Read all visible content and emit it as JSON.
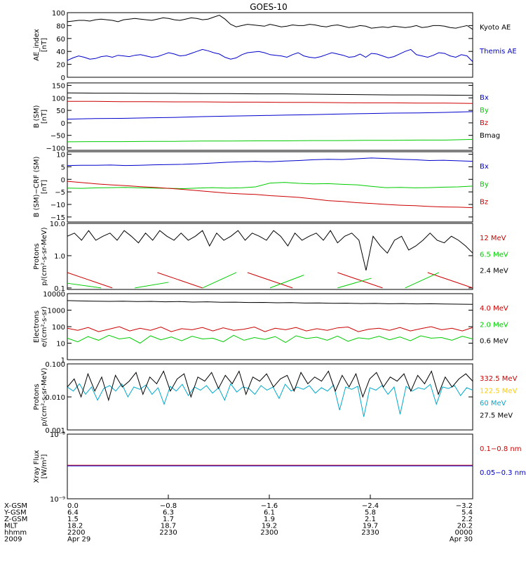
{
  "title": "GOES-10",
  "chart_data": [
    {
      "type": "line",
      "ylabel": [
        "AE_index",
        "[nT]"
      ],
      "ylim": [
        0,
        100
      ],
      "yscale": "linear",
      "ytick_labels": [
        "100",
        "80",
        "60",
        "40",
        "20",
        "0"
      ],
      "ytick_values": [
        100,
        80,
        60,
        40,
        20,
        0
      ],
      "series": [
        {
          "name": "Kyoto AE",
          "color": "#000000",
          "values": [
            86,
            87,
            88,
            88,
            87,
            89,
            90,
            89,
            88,
            86,
            89,
            90,
            91,
            90,
            89,
            88,
            90,
            92,
            91,
            89,
            88,
            90,
            92,
            91,
            89,
            90,
            93,
            96,
            90,
            82,
            78,
            80,
            82,
            81,
            80,
            79,
            82,
            80,
            78,
            79,
            81,
            80,
            80,
            82,
            81,
            79,
            78,
            80,
            81,
            79,
            77,
            78,
            80,
            79,
            76,
            77,
            78,
            77,
            79,
            78,
            77,
            78,
            80,
            77,
            78,
            80,
            80,
            79,
            77,
            76,
            78,
            80,
            74
          ]
        },
        {
          "name": "Themis AE",
          "color": "#0000cc",
          "values": [
            26,
            30,
            33,
            31,
            28,
            29,
            32,
            33,
            31,
            34,
            33,
            32,
            34,
            35,
            33,
            31,
            32,
            35,
            38,
            36,
            33,
            34,
            37,
            40,
            43,
            41,
            38,
            36,
            31,
            28,
            30,
            35,
            38,
            39,
            40,
            38,
            35,
            34,
            33,
            31,
            35,
            38,
            33,
            31,
            30,
            32,
            35,
            38,
            36,
            34,
            31,
            32,
            36,
            31,
            37,
            36,
            33,
            30,
            32,
            36,
            40,
            43,
            35,
            33,
            31,
            34,
            38,
            37,
            33,
            31,
            35,
            33,
            24
          ]
        }
      ]
    },
    {
      "type": "line",
      "ylabel": [
        "B (SM)",
        "[nT]"
      ],
      "ylim": [
        -110,
        160
      ],
      "yscale": "linear",
      "ytick_labels": [
        "150",
        "100",
        "50",
        "0",
        "−50",
        "−100"
      ],
      "ytick_values": [
        150,
        100,
        50,
        0,
        -50,
        -100
      ],
      "series": [
        {
          "name": "Bx",
          "color": "#0000cc",
          "values": [
            15,
            17,
            18,
            20,
            22,
            25,
            27,
            29,
            31,
            33,
            35,
            37,
            39,
            40,
            42,
            45
          ]
        },
        {
          "name": "By",
          "color": "#00cc00",
          "values": [
            -76,
            -75,
            -75,
            -74,
            -74,
            -73,
            -73,
            -72,
            -72,
            -71,
            -71,
            -70,
            -70,
            -69,
            -69,
            -66
          ]
        },
        {
          "name": "Bz",
          "color": "#cc0000",
          "values": [
            86,
            86,
            85,
            85,
            84,
            84,
            83,
            83,
            82,
            82,
            81,
            80,
            80,
            79,
            79,
            78
          ]
        },
        {
          "name": "Bmag",
          "color": "#000000",
          "values": [
            120,
            119,
            119,
            118,
            118,
            117,
            117,
            116,
            116,
            115,
            114,
            113,
            112,
            112,
            111,
            110
          ]
        }
      ]
    },
    {
      "type": "line",
      "ylabel": [
        "B (SM)−CRF (SM)",
        "[nT]"
      ],
      "ylim": [
        -17,
        11
      ],
      "yscale": "linear",
      "ytick_labels": [
        "10",
        "5",
        "0",
        "−5",
        "−10",
        "−15"
      ],
      "ytick_values": [
        10,
        5,
        0,
        -5,
        -10,
        -15
      ],
      "series": [
        {
          "name": "Bx",
          "color": "#0000cc",
          "values": [
            5.5,
            5.6,
            5.6,
            5.7,
            5.5,
            5.6,
            5.8,
            5.9,
            6,
            6.2,
            6.5,
            6.8,
            7,
            7.2,
            7,
            7.3,
            7.5,
            7.8,
            8,
            7.9,
            8.2,
            8.5,
            8.3,
            8,
            7.8,
            7.5,
            7.6,
            7.4,
            7.2
          ]
        },
        {
          "name": "By",
          "color": "#00cc00",
          "values": [
            -3.5,
            -3.6,
            -3.4,
            -3.3,
            -3.2,
            -3.4,
            -3.5,
            -3.6,
            -3.7,
            -3.5,
            -3.3,
            -3.5,
            -3.4,
            -3,
            -1.5,
            -1.2,
            -1.6,
            -1.8,
            -1.7,
            -2,
            -2.2,
            -2.8,
            -3.3,
            -3.2,
            -3.4,
            -3.3,
            -3.1,
            -3,
            -2.7
          ]
        },
        {
          "name": "Bz",
          "color": "#cc0000",
          "values": [
            -0.8,
            -1.3,
            -1.8,
            -2.2,
            -2.5,
            -2.9,
            -3.2,
            -3.6,
            -4,
            -4.5,
            -5,
            -5.5,
            -5.8,
            -6,
            -6.5,
            -6.8,
            -7.2,
            -7.8,
            -8.5,
            -8.8,
            -9.3,
            -9.6,
            -10,
            -10.3,
            -10.5,
            -10.8,
            -11,
            -11.1,
            -11.3
          ]
        }
      ]
    },
    {
      "type": "line",
      "ylabel": [
        "Protons",
        "p/(cm²-s-sr-MeV)"
      ],
      "ylim": [
        0.09,
        10
      ],
      "yscale": "log",
      "ytick_labels": [
        "10.0",
        "1.0",
        "0.1"
      ],
      "ytick_values": [
        10,
        1,
        0.1
      ],
      "series": [
        {
          "name": "12 MeV",
          "color": "#cc0000",
          "values": [
            0.3,
            0.1,
            0.3,
            0.1,
            0.3,
            0.1,
            0.3,
            0.1,
            0.3,
            0.1
          ]
        },
        {
          "name": "6.5 MeV",
          "color": "#00cc00",
          "values": [
            0.14,
            0.1,
            0.1,
            0.15,
            0.1,
            0.3,
            0.1,
            0.25,
            0.1,
            0.2,
            0.1,
            0.3,
            0.1
          ]
        },
        {
          "name": "2.4 MeV",
          "color": "#000000",
          "values": [
            4,
            5,
            3,
            6,
            3,
            4,
            5,
            3,
            6,
            4,
            2.5,
            5,
            3,
            6,
            4,
            3,
            5,
            3,
            4,
            6,
            2,
            5,
            3,
            4,
            6,
            3,
            5,
            4,
            3,
            6,
            4,
            2,
            5,
            3,
            4,
            5,
            3,
            6,
            2.5,
            4,
            5,
            3,
            0.35,
            4,
            2,
            1.2,
            3,
            4,
            1.5,
            2,
            3,
            5,
            3,
            2.5,
            4,
            3,
            2,
            1.2
          ]
        }
      ]
    },
    {
      "type": "line",
      "ylabel": [
        "Electrons",
        "e/(cm²-s-sr)"
      ],
      "ylim": [
        1,
        10000
      ],
      "yscale": "log",
      "ytick_labels": [
        "10000",
        "1000",
        "100",
        "10",
        "1"
      ],
      "ytick_values": [
        10000,
        1000,
        100,
        10,
        1
      ],
      "series": [
        {
          "name": "4.0 MeV",
          "color": "#cc0000",
          "values": [
            80,
            60,
            90,
            50,
            70,
            100,
            55,
            80,
            60,
            95,
            50,
            75,
            65,
            90,
            55,
            85,
            60,
            70,
            95,
            50,
            80,
            65,
            90,
            55,
            75,
            60,
            85,
            95,
            50,
            70,
            80,
            60,
            90,
            55,
            75,
            100,
            65,
            80,
            55,
            90
          ]
        },
        {
          "name": "2.0 MeV",
          "color": "#00cc00",
          "values": [
            20,
            12,
            25,
            15,
            30,
            18,
            22,
            10,
            28,
            16,
            24,
            14,
            26,
            18,
            20,
            12,
            30,
            15,
            22,
            17,
            25,
            11,
            28,
            19,
            23,
            15,
            27,
            13,
            21,
            18,
            26,
            16,
            24,
            14,
            28,
            20,
            22,
            15,
            26,
            18
          ]
        },
        {
          "name": "0.6 MeV",
          "color": "#000000",
          "values": [
            3800,
            3600,
            3500,
            3400,
            3500,
            3300,
            3400,
            3200,
            3300,
            3100,
            3200,
            3000,
            3050,
            2900,
            2950,
            2800,
            2850,
            2700,
            2750,
            2600,
            2650,
            2500,
            2550,
            2450,
            2500,
            2400,
            2450,
            2350,
            2300,
            2250
          ]
        }
      ]
    },
    {
      "type": "line",
      "ylabel": [
        "Protons",
        "p/(cm²-s-sr-MeV)"
      ],
      "ylim": [
        0.001,
        0.1
      ],
      "yscale": "log",
      "ytick_labels": [
        "0.100",
        "0.010",
        "0.001"
      ],
      "ytick_values": [
        0.1,
        0.01,
        0.001
      ],
      "series": [
        {
          "name": "332.5 MeV",
          "color": "#cc0000",
          "values": []
        },
        {
          "name": "122.5 MeV",
          "color": "#ffcc00",
          "values": []
        },
        {
          "name": "60 MeV",
          "color": "#00aacc",
          "values": [
            0.02,
            0.015,
            0.025,
            0.012,
            0.02,
            0.008,
            0.018,
            0.022,
            0.015,
            0.025,
            0.01,
            0.02,
            0.017,
            0.023,
            0.012,
            0.019,
            0.006,
            0.021,
            0.015,
            0.024,
            0.011,
            0.02,
            0.016,
            0.022,
            0.013,
            0.019,
            0.008,
            0.025,
            0.014,
            0.02,
            0.018,
            0.012,
            0.022,
            0.016,
            0.02,
            0.009,
            0.024,
            0.015,
            0.02,
            0.017,
            0.022,
            0.013,
            0.019,
            0.015,
            0.023,
            0.004,
            0.02,
            0.017,
            0.021,
            0.0025,
            0.019,
            0.016,
            0.022,
            0.012,
            0.02,
            0.003,
            0.021,
            0.015,
            0.019,
            0.017,
            0.024,
            0.006,
            0.02,
            0.018,
            0.022,
            0.011,
            0.019,
            0.016
          ]
        },
        {
          "name": "27.5 MeV",
          "color": "#000000",
          "values": [
            0.02,
            0.035,
            0.01,
            0.05,
            0.015,
            0.04,
            0.008,
            0.045,
            0.02,
            0.03,
            0.055,
            0.012,
            0.04,
            0.025,
            0.06,
            0.015,
            0.035,
            0.05,
            0.01,
            0.04,
            0.03,
            0.055,
            0.018,
            0.045,
            0.025,
            0.06,
            0.012,
            0.04,
            0.03,
            0.05,
            0.02,
            0.035,
            0.045,
            0.015,
            0.055,
            0.025,
            0.04,
            0.03,
            0.06,
            0.015,
            0.045,
            0.02,
            0.05,
            0.01,
            0.035,
            0.055,
            0.02,
            0.04,
            0.03,
            0.05,
            0.015,
            0.045,
            0.025,
            0.06,
            0.012,
            0.04,
            0.02,
            0.035,
            0.05,
            0.03
          ]
        }
      ]
    },
    {
      "type": "line",
      "ylabel": [
        "Xray  Flux",
        "[W/m²]"
      ],
      "ylim": [
        -9,
        -8
      ],
      "yscale": "log10-exponent",
      "ytick_labels": [
        "10⁻⁸",
        "10⁻⁹"
      ],
      "ytick_values": [
        -8,
        -9
      ],
      "series": [
        {
          "name": "0.1−0.8 nm",
          "color": "#cc0000",
          "values": [
            -8.48,
            -8.48
          ]
        },
        {
          "name": "0.05−0.3 nm",
          "color": "#0000cc",
          "values": [
            -8.49,
            -8.49
          ]
        }
      ]
    }
  ],
  "ephemeris": {
    "rows": [
      {
        "label": "X-GSM",
        "values": [
          "0.0",
          "−0.8",
          "−1.6",
          "−2.4",
          "−3.2"
        ]
      },
      {
        "label": "Y-GSM",
        "values": [
          "6.4",
          "6.3",
          "6.1",
          "5.8",
          "5.4"
        ]
      },
      {
        "label": "Z-GSM",
        "values": [
          "1.5",
          "1.7",
          "1.9",
          "2.1",
          "2.2"
        ]
      },
      {
        "label": "MLT",
        "values": [
          "18.2",
          "18.7",
          "19.2",
          "19.7",
          "20.2"
        ]
      },
      {
        "label": "hhmm",
        "values": [
          "2200",
          "2230",
          "2300",
          "2330",
          "0000"
        ]
      },
      {
        "label": "2009",
        "values": [
          "Apr 29",
          "",
          "",
          "",
          "Apr 30"
        ]
      }
    ]
  }
}
